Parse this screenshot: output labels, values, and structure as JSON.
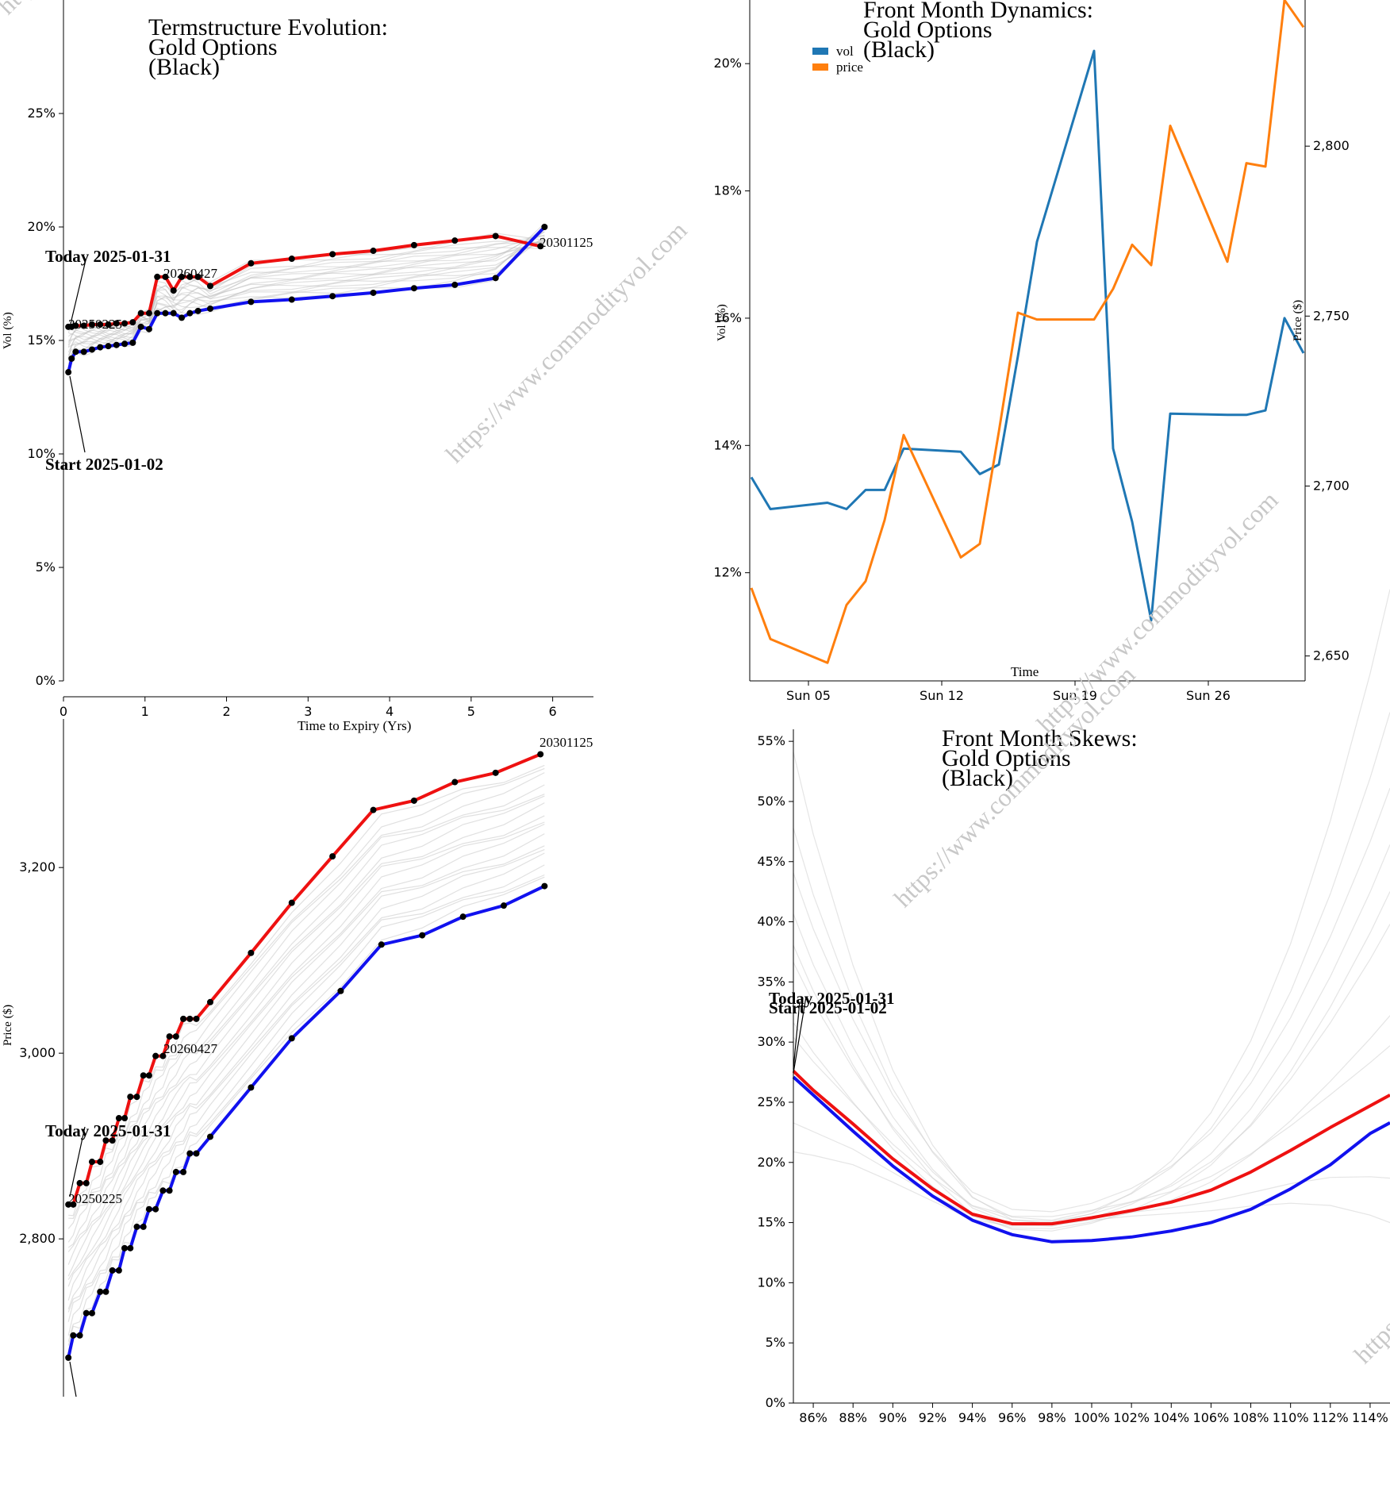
{
  "chart_data": [
    {
      "id": "termstructure",
      "type": "line",
      "title": [
        "Termstructure Evolution:",
        "Gold Options",
        "(Black)"
      ],
      "xlabel": "Time to Expiry (Yrs)",
      "ylabel": "Vol (%)",
      "xlim": [
        0,
        6.5
      ],
      "ylim": [
        0,
        30
      ],
      "xticks": [
        0,
        1,
        2,
        3,
        4,
        5,
        6
      ],
      "yticks": [
        0,
        5,
        10,
        15,
        20,
        25
      ],
      "ytick_labels": [
        "0%",
        "5%",
        "10%",
        "15%",
        "20%",
        "25%"
      ],
      "series": [
        {
          "color": "#ee1111",
          "x": [
            0.06,
            0.1,
            0.15,
            0.25,
            0.35,
            0.45,
            0.55,
            0.65,
            0.75,
            0.85,
            0.95,
            1.05,
            1.15,
            1.25,
            1.35,
            1.45,
            1.55,
            1.65,
            1.8,
            2.3,
            2.8,
            3.3,
            3.8,
            4.3,
            4.8,
            5.3,
            5.85
          ],
          "y": [
            15.6,
            15.6,
            15.65,
            15.65,
            15.7,
            15.7,
            15.7,
            15.75,
            15.75,
            15.8,
            16.2,
            16.2,
            17.8,
            17.8,
            17.2,
            17.8,
            17.8,
            17.8,
            17.4,
            18.4,
            18.6,
            18.8,
            18.95,
            19.2,
            19.4,
            19.6,
            19.15
          ]
        },
        {
          "color": "#1111ee",
          "x": [
            0.06,
            0.1,
            0.15,
            0.25,
            0.35,
            0.45,
            0.55,
            0.65,
            0.75,
            0.85,
            0.95,
            1.05,
            1.15,
            1.25,
            1.35,
            1.45,
            1.55,
            1.65,
            1.8,
            2.3,
            2.8,
            3.3,
            3.8,
            4.3,
            4.8,
            5.3,
            5.9
          ],
          "y": [
            13.6,
            14.2,
            14.5,
            14.5,
            14.6,
            14.7,
            14.75,
            14.8,
            14.85,
            14.9,
            15.6,
            15.5,
            16.2,
            16.2,
            16.2,
            16.0,
            16.2,
            16.3,
            16.4,
            16.7,
            16.8,
            16.95,
            17.1,
            17.3,
            17.45,
            17.75,
            20.0
          ]
        }
      ],
      "annotations": {
        "today": "Today 2025-01-31",
        "start": "Start 2025-01-02",
        "labels": [
          "20250225",
          "20260427",
          "20301125"
        ]
      }
    },
    {
      "id": "front_month_dynamics",
      "type": "line",
      "title": [
        "Front Month Dynamics:",
        "Gold Options",
        "(Black)"
      ],
      "xlabel": "Time",
      "ylabel": "Vol (%)",
      "y2label": "Price ($)",
      "xtick_labels": [
        "Sun 05",
        "Sun 12",
        "Sun 19",
        "Sun 26"
      ],
      "xtick_days": [
        5,
        12,
        19,
        26
      ],
      "xlim": [
        2,
        31
      ],
      "ylim": [
        10.3,
        21.0
      ],
      "yticks": [
        12,
        14,
        16,
        18,
        20
      ],
      "ytick_labels": [
        "12%",
        "14%",
        "16%",
        "18%",
        "20%"
      ],
      "y2lim": [
        2645,
        2843
      ],
      "y2ticks": [
        2650,
        2700,
        2750,
        2800
      ],
      "y2tick_labels": [
        "2,650",
        "2,700",
        "2,750",
        "2,800"
      ],
      "legend": [
        "vol",
        "price"
      ],
      "legend_loc": "top-left",
      "series": [
        {
          "name": "vol",
          "color": "#1f77b4",
          "axis": "left",
          "x": [
            2,
            3,
            6,
            7,
            8,
            9,
            10,
            13,
            14,
            15,
            16,
            17,
            18,
            19,
            20,
            21,
            22,
            23,
            24,
            27,
            28,
            29,
            30,
            31
          ],
          "y": [
            13.5,
            13.0,
            13.1,
            13.0,
            13.3,
            13.3,
            13.95,
            13.9,
            13.55,
            13.7,
            15.4,
            17.2,
            18.2,
            19.2,
            20.2,
            13.95,
            12.8,
            11.25,
            14.5,
            14.48,
            14.48,
            14.55,
            16.0,
            15.45
          ]
        },
        {
          "name": "price",
          "color": "#ff7f0e",
          "axis": "right",
          "x": [
            2,
            3,
            6,
            7,
            8,
            9,
            10,
            13,
            14,
            15,
            16,
            17,
            20,
            21,
            22,
            23,
            24,
            27,
            28,
            29,
            30,
            31
          ],
          "y": [
            2670,
            2655,
            2648,
            2665,
            2672,
            2690,
            2715,
            2679,
            2683,
            2716,
            2751,
            2749,
            2749,
            2758,
            2771,
            2765,
            2806,
            2766,
            2795,
            2794,
            2843,
            2835
          ]
        }
      ]
    },
    {
      "id": "forward_curves",
      "type": "line",
      "xlabel": "",
      "ylabel": "Price ($)",
      "xlim": [
        0,
        6.5
      ],
      "ylim": [
        2630,
        3360
      ],
      "yticks": [
        2800,
        3000,
        3200
      ],
      "ytick_labels": [
        "2,800",
        "3,000",
        "3,200"
      ],
      "series": [
        {
          "color": "#ee1111",
          "x": [
            0.06,
            0.12,
            0.2,
            0.28,
            0.35,
            0.45,
            0.52,
            0.6,
            0.68,
            0.75,
            0.82,
            0.9,
            0.98,
            1.05,
            1.13,
            1.22,
            1.3,
            1.38,
            1.47,
            1.55,
            1.63,
            1.8,
            2.3,
            2.8,
            3.3,
            3.8,
            4.3,
            4.8,
            5.3,
            5.85
          ],
          "y": [
            2837,
            2837,
            2860,
            2860,
            2883,
            2883,
            2906,
            2906,
            2930,
            2930,
            2953,
            2953,
            2976,
            2976,
            2997,
            2997,
            3018,
            3018,
            3037,
            3037,
            3037,
            3055,
            3108,
            3162,
            3212,
            3262,
            3272,
            3292,
            3302,
            3322
          ]
        },
        {
          "color": "#1111ee",
          "x": [
            0.06,
            0.12,
            0.2,
            0.28,
            0.35,
            0.45,
            0.52,
            0.6,
            0.68,
            0.75,
            0.82,
            0.9,
            0.98,
            1.05,
            1.13,
            1.22,
            1.3,
            1.38,
            1.47,
            1.55,
            1.63,
            1.8,
            2.3,
            2.8,
            3.4,
            3.9,
            4.4,
            4.9,
            5.4,
            5.9
          ],
          "y": [
            2672,
            2696,
            2696,
            2720,
            2720,
            2743,
            2743,
            2766,
            2766,
            2790,
            2790,
            2813,
            2813,
            2832,
            2832,
            2852,
            2852,
            2872,
            2872,
            2892,
            2892,
            2910,
            2963,
            3016,
            3067,
            3117,
            3127,
            3147,
            3159,
            3180
          ]
        }
      ],
      "annotations": {
        "today": "Today 2025-01-31",
        "labels": [
          "20250225",
          "20260427",
          "20301125"
        ]
      }
    },
    {
      "id": "front_month_skews",
      "type": "line",
      "title": [
        "Front Month Skews:",
        "Gold Options",
        "(Black)"
      ],
      "xlim": [
        85,
        115
      ],
      "ylim": [
        0,
        56
      ],
      "xticks": [
        86,
        88,
        90,
        92,
        94,
        96,
        98,
        100,
        102,
        104,
        106,
        108,
        110,
        112,
        114
      ],
      "xtick_labels": [
        "86%",
        "88%",
        "90%",
        "92%",
        "94%",
        "96%",
        "98%",
        "100%",
        "102%",
        "104%",
        "106%",
        "108%",
        "110%",
        "112%",
        "114%"
      ],
      "yticks": [
        0,
        5,
        10,
        15,
        20,
        25,
        30,
        35,
        40,
        45,
        50,
        55
      ],
      "ytick_labels": [
        "0%",
        "5%",
        "10%",
        "15%",
        "20%",
        "25%",
        "30%",
        "35%",
        "40%",
        "45%",
        "50%",
        "55%"
      ],
      "series": [
        {
          "color": "#ee1111",
          "x": [
            85,
            86,
            88,
            90,
            92,
            94,
            96,
            98,
            100,
            102,
            104,
            106,
            108,
            110,
            112,
            114,
            115
          ],
          "y": [
            27.6,
            26.0,
            23.2,
            20.3,
            17.8,
            15.7,
            14.9,
            14.9,
            15.4,
            16.0,
            16.7,
            17.7,
            19.2,
            21.0,
            22.9,
            24.7,
            25.6
          ]
        },
        {
          "color": "#1111ee",
          "x": [
            85,
            86,
            88,
            90,
            92,
            94,
            96,
            98,
            100,
            102,
            104,
            106,
            108,
            110,
            112,
            114,
            115
          ],
          "y": [
            27.1,
            25.6,
            22.6,
            19.7,
            17.2,
            15.2,
            14.0,
            13.4,
            13.5,
            13.8,
            14.3,
            15.0,
            16.1,
            17.8,
            19.8,
            22.4,
            23.3
          ]
        }
      ],
      "annotations": {
        "today": "Today 2025-01-31",
        "start": "Start 2025-01-02"
      }
    }
  ],
  "watermark": "https://www.commodityvol.com"
}
